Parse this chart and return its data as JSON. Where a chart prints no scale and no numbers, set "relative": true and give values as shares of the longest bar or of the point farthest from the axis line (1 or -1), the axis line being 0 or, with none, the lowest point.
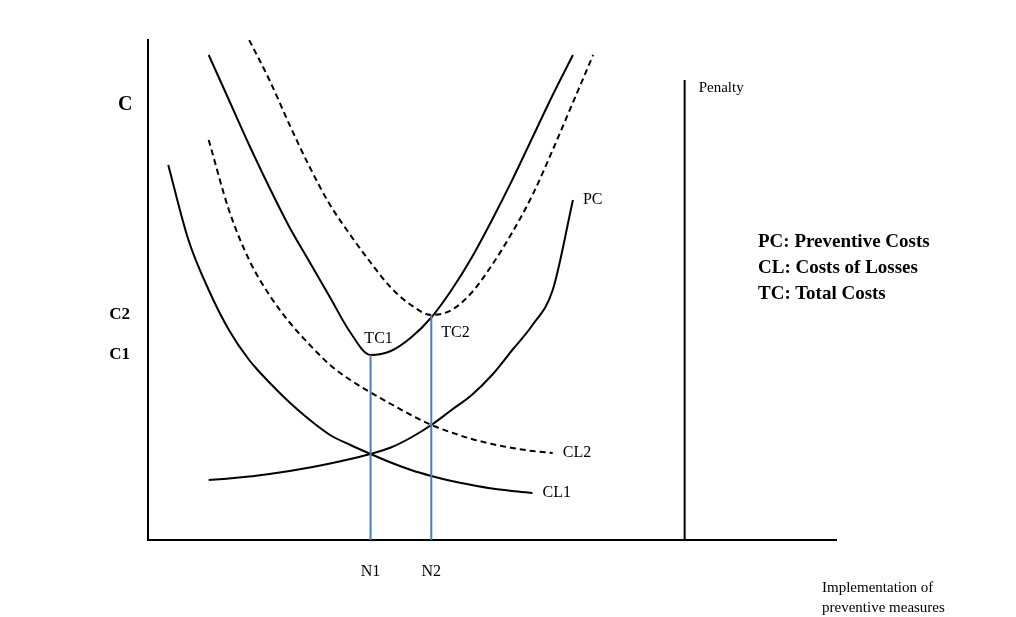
{
  "chart_data": {
    "type": "line",
    "relative": true,
    "ylabel": "C",
    "y2label": "Penalty",
    "xlabel": "Implementation of preventive measures",
    "grid": false,
    "legend": false,
    "marker": "none",
    "categories": [
      null,
      null,
      null,
      null,
      null,
      null,
      null,
      null,
      null,
      null,
      null,
      "N1",
      null,
      null,
      "N2",
      null,
      null,
      null,
      null,
      null,
      null,
      null,
      null,
      null,
      null,
      null,
      null,
      null,
      null,
      null,
      null,
      null,
      null,
      null,
      null
    ],
    "series": [
      {
        "name": "TC1",
        "color": "#000000",
        "line_style": "solid",
        "values": [
          null,
          null,
          null,
          0.97,
          0.88,
          0.79,
          0.705,
          0.625,
          0.555,
          0.485,
          0.415,
          0.37,
          0.378,
          0.405,
          0.445,
          0.5,
          0.565,
          0.64,
          0.72,
          0.805,
          0.89,
          0.97,
          null,
          null,
          null,
          null,
          null,
          null,
          null,
          null,
          null,
          null,
          null,
          null,
          null
        ]
      },
      {
        "name": "TC2",
        "color": "#000000",
        "line_style": "dashed",
        "values": [
          null,
          null,
          null,
          null,
          null,
          1.0,
          0.92,
          0.83,
          0.745,
          0.67,
          0.61,
          0.555,
          0.505,
          0.47,
          0.45,
          0.46,
          0.495,
          0.55,
          0.615,
          0.69,
          0.78,
          0.875,
          0.97,
          null,
          null,
          null,
          null,
          null,
          null,
          null,
          null,
          null,
          null,
          null,
          null
        ]
      },
      {
        "name": "PC",
        "color": "#000000",
        "line_style": "solid",
        "values": [
          null,
          null,
          null,
          0.12,
          0.123,
          0.127,
          0.132,
          0.138,
          0.145,
          0.153,
          0.162,
          0.172,
          0.185,
          0.205,
          0.23,
          0.26,
          0.29,
          0.33,
          0.38,
          0.43,
          0.5,
          0.68,
          null,
          null,
          null,
          null,
          null,
          null,
          null,
          null,
          null,
          null,
          null,
          null,
          null
        ]
      },
      {
        "name": "CL1",
        "color": "#000000",
        "line_style": "solid",
        "values": [
          null,
          0.75,
          0.6,
          0.5,
          0.42,
          0.36,
          0.315,
          0.275,
          0.24,
          0.21,
          0.19,
          0.172,
          0.155,
          0.14,
          0.128,
          0.118,
          0.11,
          0.103,
          0.098,
          0.094,
          null,
          null,
          null,
          null,
          null,
          null,
          null,
          null,
          null,
          null,
          null,
          null,
          null,
          null,
          null
        ]
      },
      {
        "name": "CL2",
        "color": "#000000",
        "line_style": "dashed",
        "values": [
          null,
          null,
          null,
          0.8,
          0.66,
          0.56,
          0.49,
          0.435,
          0.39,
          0.35,
          0.32,
          0.295,
          0.272,
          0.25,
          0.23,
          0.215,
          0.202,
          0.192,
          0.184,
          0.178,
          0.174,
          null,
          null,
          null,
          null,
          null,
          null,
          null,
          null,
          null,
          null,
          null,
          null,
          null,
          null
        ]
      }
    ],
    "ref_lines": [
      {
        "axis": "x",
        "value": "N1",
        "color": "#4a7ebb"
      },
      {
        "axis": "x",
        "value": "N2",
        "color": "#4a7ebb"
      }
    ],
    "annotations": [
      "C1",
      "C2",
      "PC: Preventive Costs",
      "CL: Costs of Losses",
      "TC: Total Costs"
    ]
  }
}
